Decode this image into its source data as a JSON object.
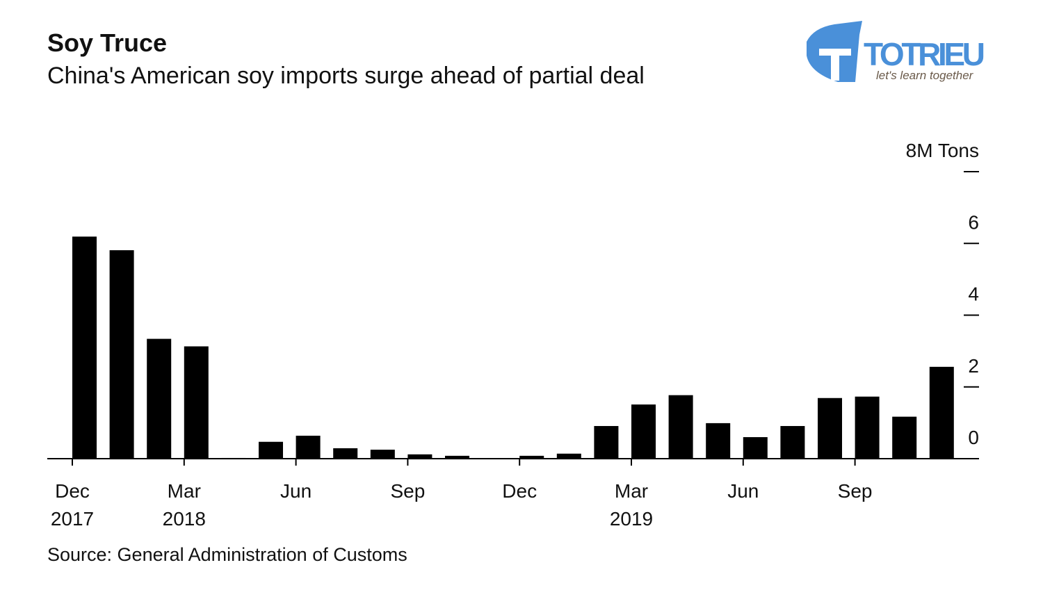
{
  "chart_data": {
    "type": "bar",
    "title": "Soy Truce",
    "subtitle": "China's American soy imports surge ahead of partial deal",
    "source": "Source: General Administration of Customs",
    "logo": {
      "name": "TOTRIEU",
      "tagline": "let's learn together"
    },
    "categories": [
      "Dec",
      null,
      null,
      "Mar",
      null,
      null,
      "Jun",
      null,
      null,
      "Sep",
      null,
      null,
      "Dec",
      null,
      null,
      "Mar",
      null,
      null,
      "Jun",
      null,
      null,
      "Sep",
      null,
      null
    ],
    "year_labels": [
      "2017",
      null,
      null,
      "2018",
      null,
      null,
      null,
      null,
      null,
      null,
      null,
      null,
      null,
      null,
      null,
      "2019",
      null,
      null,
      null,
      null,
      null,
      null,
      null,
      null
    ],
    "values": [
      6.19,
      5.81,
      3.34,
      3.13,
      0.02,
      0.47,
      0.64,
      0.29,
      0.25,
      0.12,
      0.08,
      0.01,
      0.08,
      0.14,
      0.91,
      1.51,
      1.77,
      0.99,
      0.6,
      0.91,
      1.69,
      1.73,
      1.17,
      2.56
    ],
    "color": "#000000",
    "ylim": [
      0,
      8
    ],
    "yticks": [
      0,
      2,
      4,
      6,
      {
        "value": 8,
        "label": "8M Tons"
      }
    ],
    "grid": false
  }
}
